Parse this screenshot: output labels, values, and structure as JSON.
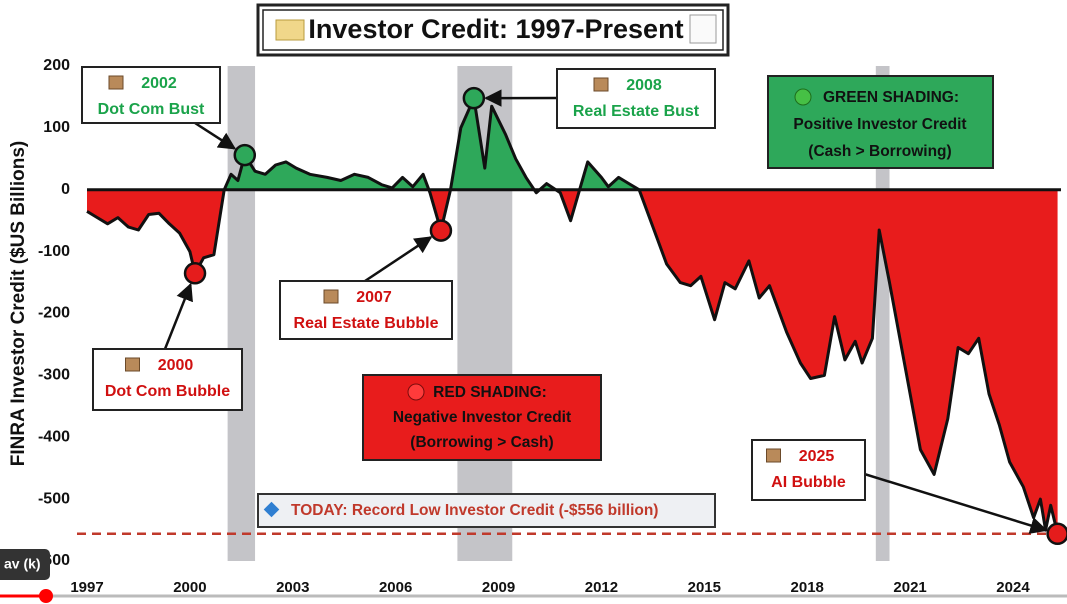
{
  "chart_data": {
    "type": "area",
    "title": "Investor Credit: 1997-Present",
    "y_label": "FINRA Investor Credit ($US Billions)",
    "x": [
      1997.0,
      1997.3,
      1997.6,
      1997.9,
      1998.2,
      1998.5,
      1998.8,
      1999.1,
      1999.4,
      1999.7,
      2000.0,
      2000.15,
      2000.4,
      2000.7,
      2001.0,
      2001.2,
      2001.4,
      2001.6,
      2001.9,
      2002.2,
      2002.5,
      2002.8,
      2003.1,
      2003.5,
      2004.0,
      2004.4,
      2004.8,
      2005.2,
      2005.6,
      2005.9,
      2006.2,
      2006.5,
      2006.8,
      2007.0,
      2007.32,
      2007.6,
      2007.9,
      2008.28,
      2008.6,
      2008.8,
      2009.2,
      2009.5,
      2009.8,
      2010.1,
      2010.4,
      2010.8,
      2011.1,
      2011.6,
      2012.0,
      2012.2,
      2012.5,
      2012.8,
      2013.1,
      2013.5,
      2013.9,
      2014.3,
      2014.6,
      2014.9,
      2015.3,
      2015.6,
      2015.9,
      2016.3,
      2016.6,
      2016.9,
      2017.4,
      2017.8,
      2018.1,
      2018.5,
      2018.8,
      2019.1,
      2019.4,
      2019.6,
      2019.9,
      2020.1,
      2020.4,
      2020.9,
      2021.3,
      2021.7,
      2022.1,
      2022.4,
      2022.7,
      2023.0,
      2023.3,
      2023.6,
      2023.9,
      2024.3,
      2024.6,
      2024.8,
      2024.95,
      2025.1,
      2025.3
    ],
    "values": [
      -35,
      -45,
      -55,
      -45,
      -60,
      -65,
      -40,
      -38,
      -55,
      -70,
      -100,
      -135,
      -110,
      -105,
      0,
      25,
      15,
      56,
      30,
      25,
      40,
      45,
      35,
      25,
      20,
      15,
      25,
      20,
      8,
      3,
      20,
      5,
      25,
      -5,
      -66,
      0,
      100,
      148,
      35,
      135,
      90,
      50,
      20,
      -5,
      10,
      -5,
      -50,
      45,
      20,
      5,
      20,
      10,
      0,
      -60,
      -120,
      -150,
      -155,
      -140,
      -210,
      -150,
      -160,
      -115,
      -175,
      -155,
      -230,
      -280,
      -305,
      -300,
      -205,
      -275,
      -245,
      -280,
      -240,
      -65,
      -150,
      -300,
      -420,
      -460,
      -370,
      -255,
      -265,
      -240,
      -330,
      -380,
      -440,
      -480,
      -530,
      -500,
      -550,
      -510,
      -556
    ],
    "positive_color": "#2ea85a",
    "negative_color": "#e81c1c",
    "line_color": "#111111",
    "xlim": [
      1997,
      2025.4
    ],
    "ylim": [
      -600,
      200
    ],
    "xticks": [
      1997,
      2000,
      2003,
      2006,
      2009,
      2012,
      2015,
      2018,
      2021,
      2024
    ],
    "yticks": [
      200,
      100,
      0,
      -100,
      -200,
      -300,
      -400,
      -500,
      -600
    ],
    "shaded_periods": [
      [
        2001.1,
        2001.9
      ],
      [
        2007.8,
        2009.4
      ],
      [
        2020.0,
        2020.4
      ]
    ],
    "shade_color": "#c4c4c8",
    "reference_line": {
      "value": -556,
      "label": "TODAY: Record Low Investor Credit (-$556 billion)",
      "color": "#c0392b"
    },
    "annotations": [
      {
        "year": "2002",
        "label": "Dot Com Bust",
        "x": 2001.6,
        "y": 56,
        "color": "#1aa34a",
        "marker_color": "#2ea85a"
      },
      {
        "year": "2008",
        "label": "Real Estate Bust",
        "x": 2008.28,
        "y": 148,
        "color": "#1aa34a",
        "marker_color": "#2ea85a"
      },
      {
        "year": "2007",
        "label": "Real Estate Bubble",
        "x": 2007.32,
        "y": -66,
        "color": "#d01010",
        "marker_color": "#e51c1c"
      },
      {
        "year": "2000",
        "label": "Dot Com Bubble",
        "x": 2000.15,
        "y": -135,
        "color": "#d01010",
        "marker_color": "#e51c1c"
      },
      {
        "year": "2025",
        "label": "AI Bubble",
        "x": 2025.3,
        "y": -556,
        "color": "#d01010",
        "marker_color": "#e51c1c"
      }
    ],
    "green_legend": [
      "GREEN SHADING:",
      "Positive Investor Credit",
      "(Cash > Borrowing)"
    ],
    "red_legend": [
      "RED SHADING:",
      "Negative Investor Credit",
      "(Borrowing > Cash)"
    ],
    "player_tooltip": "av (k)"
  }
}
